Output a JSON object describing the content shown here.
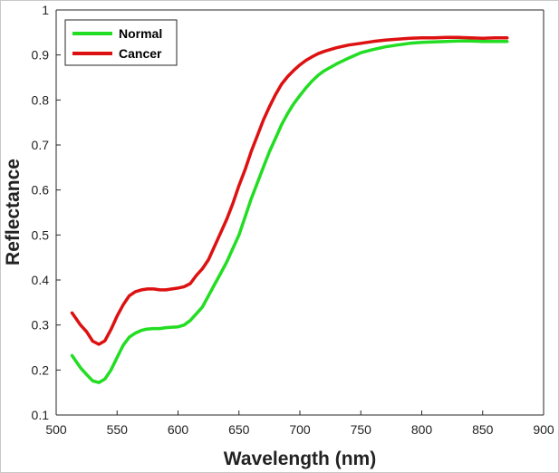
{
  "chart_data": {
    "type": "line",
    "title": "",
    "xlabel": "Wavelength (nm)",
    "ylabel": "Reflectance",
    "xlim": [
      500,
      900
    ],
    "ylim": [
      0.1,
      1
    ],
    "xticks": [
      "500",
      "550",
      "600",
      "650",
      "700",
      "750",
      "800",
      "850",
      "900"
    ],
    "yticks": [
      "0.1",
      "0.2",
      "0.3",
      "0.4",
      "0.5",
      "0.6",
      "0.7",
      "0.8",
      "0.9",
      "1"
    ],
    "grid": false,
    "legend_position": "top-left",
    "series": [
      {
        "name": "Normal",
        "color": "#22dd22",
        "x": [
          513,
          520,
          525,
          530,
          535,
          540,
          545,
          550,
          555,
          560,
          565,
          570,
          575,
          580,
          585,
          590,
          595,
          600,
          605,
          610,
          615,
          620,
          625,
          630,
          635,
          640,
          645,
          650,
          655,
          660,
          665,
          670,
          675,
          680,
          685,
          690,
          695,
          700,
          705,
          710,
          715,
          720,
          730,
          740,
          750,
          760,
          770,
          780,
          790,
          800,
          810,
          820,
          830,
          840,
          850,
          860,
          870
        ],
        "y": [
          0.232,
          0.205,
          0.19,
          0.176,
          0.172,
          0.18,
          0.2,
          0.228,
          0.255,
          0.273,
          0.282,
          0.288,
          0.291,
          0.292,
          0.292,
          0.294,
          0.295,
          0.296,
          0.3,
          0.31,
          0.325,
          0.34,
          0.365,
          0.39,
          0.415,
          0.44,
          0.47,
          0.5,
          0.54,
          0.58,
          0.615,
          0.65,
          0.685,
          0.715,
          0.745,
          0.77,
          0.792,
          0.81,
          0.827,
          0.842,
          0.855,
          0.865,
          0.88,
          0.893,
          0.905,
          0.912,
          0.918,
          0.922,
          0.926,
          0.928,
          0.929,
          0.93,
          0.931,
          0.931,
          0.93,
          0.93,
          0.93
        ]
      },
      {
        "name": "Cancer",
        "color": "#dd1111",
        "x": [
          513,
          520,
          525,
          530,
          535,
          540,
          545,
          550,
          555,
          560,
          565,
          570,
          575,
          580,
          585,
          590,
          595,
          600,
          605,
          610,
          615,
          620,
          625,
          630,
          635,
          640,
          645,
          650,
          655,
          660,
          665,
          670,
          675,
          680,
          685,
          690,
          695,
          700,
          705,
          710,
          715,
          720,
          730,
          740,
          750,
          760,
          770,
          780,
          790,
          800,
          810,
          820,
          830,
          840,
          850,
          860,
          870
        ],
        "y": [
          0.327,
          0.3,
          0.285,
          0.264,
          0.257,
          0.265,
          0.29,
          0.32,
          0.345,
          0.365,
          0.374,
          0.378,
          0.38,
          0.38,
          0.378,
          0.378,
          0.38,
          0.382,
          0.385,
          0.392,
          0.41,
          0.425,
          0.445,
          0.475,
          0.505,
          0.535,
          0.57,
          0.61,
          0.645,
          0.685,
          0.72,
          0.755,
          0.785,
          0.812,
          0.835,
          0.852,
          0.866,
          0.878,
          0.888,
          0.896,
          0.903,
          0.908,
          0.916,
          0.922,
          0.926,
          0.93,
          0.933,
          0.935,
          0.937,
          0.938,
          0.938,
          0.939,
          0.939,
          0.938,
          0.937,
          0.938,
          0.938
        ]
      }
    ]
  }
}
